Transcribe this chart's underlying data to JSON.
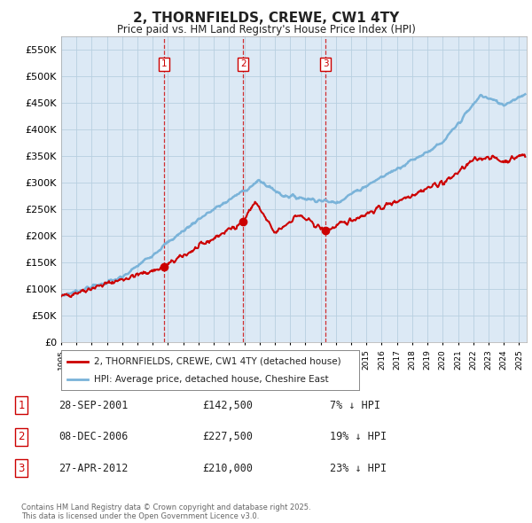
{
  "title": "2, THORNFIELDS, CREWE, CW1 4TY",
  "subtitle": "Price paid vs. HM Land Registry's House Price Index (HPI)",
  "ylim": [
    0,
    575000
  ],
  "yticks": [
    0,
    50000,
    100000,
    150000,
    200000,
    250000,
    300000,
    350000,
    400000,
    450000,
    500000,
    550000
  ],
  "ytick_labels": [
    "£0",
    "£50K",
    "£100K",
    "£150K",
    "£200K",
    "£250K",
    "£300K",
    "£350K",
    "£400K",
    "£450K",
    "£500K",
    "£550K"
  ],
  "hpi_color": "#7ab3d9",
  "price_color": "#cc0000",
  "dashed_color": "#cc0000",
  "chart_bg_color": "#dce9f5",
  "background_color": "#ffffff",
  "grid_color": "#b8cfe0",
  "transactions": [
    {
      "date_x": 2001.74,
      "price": 142500,
      "label": "1"
    },
    {
      "date_x": 2006.93,
      "price": 227500,
      "label": "2"
    },
    {
      "date_x": 2012.32,
      "price": 210000,
      "label": "3"
    }
  ],
  "legend_entries": [
    {
      "label": "2, THORNFIELDS, CREWE, CW1 4TY (detached house)",
      "color": "#cc0000"
    },
    {
      "label": "HPI: Average price, detached house, Cheshire East",
      "color": "#7ab3d9"
    }
  ],
  "table_rows": [
    {
      "num": "1",
      "date": "28-SEP-2001",
      "price": "£142,500",
      "note": "7% ↓ HPI"
    },
    {
      "num": "2",
      "date": "08-DEC-2006",
      "price": "£227,500",
      "note": "19% ↓ HPI"
    },
    {
      "num": "3",
      "date": "27-APR-2012",
      "price": "£210,000",
      "note": "23% ↓ HPI"
    }
  ],
  "footer": "Contains HM Land Registry data © Crown copyright and database right 2025.\nThis data is licensed under the Open Government Licence v3.0.",
  "xmin": 1995.0,
  "xmax": 2025.5
}
